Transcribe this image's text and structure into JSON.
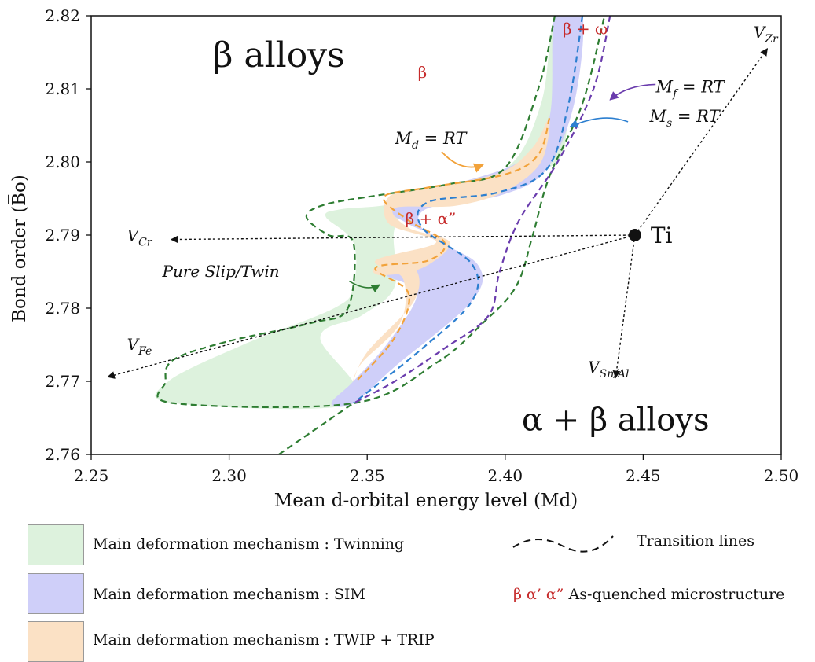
{
  "chart_data": {
    "type": "scatter",
    "xlabel": "Mean d-orbital energy level (Md)",
    "ylabel": "Bond order (B̅o)",
    "xlim": [
      2.25,
      2.5
    ],
    "ylim": [
      2.76,
      2.82
    ],
    "xticks": [
      "2.25",
      "2.30",
      "2.35",
      "2.40",
      "2.45",
      "2.50"
    ],
    "yticks": [
      "2.82",
      "2.81",
      "2.80",
      "2.79",
      "2.78",
      "2.77",
      "2.76"
    ],
    "regions": {
      "twinning": {
        "color": "#ddf2dd",
        "points": [
          [
            2.368,
            2.795
          ],
          [
            2.4,
            2.799
          ],
          [
            2.413,
            2.808
          ],
          [
            2.418,
            2.82
          ],
          [
            2.428,
            2.82
          ],
          [
            2.423,
            2.806
          ],
          [
            2.415,
            2.799
          ],
          [
            2.37,
            2.7945
          ],
          [
            2.36,
            2.791
          ],
          [
            2.36,
            2.783
          ],
          [
            2.348,
            2.779
          ],
          [
            2.333,
            2.776
          ],
          [
            2.345,
            2.767
          ],
          [
            2.28,
            2.767
          ],
          [
            2.278,
            2.77
          ],
          [
            2.305,
            2.775
          ],
          [
            2.338,
            2.78
          ],
          [
            2.345,
            2.783
          ],
          [
            2.345,
            2.789
          ],
          [
            2.335,
            2.7925
          ],
          [
            2.34,
            2.7935
          ],
          [
            2.355,
            2.794
          ]
        ]
      },
      "sim": {
        "color": "#cfcff9",
        "points": [
          [
            2.416,
            2.806
          ],
          [
            2.418,
            2.82
          ],
          [
            2.428,
            2.82
          ],
          [
            2.425,
            2.808
          ],
          [
            2.415,
            2.799
          ],
          [
            2.399,
            2.7955
          ],
          [
            2.371,
            2.7935
          ],
          [
            2.372,
            2.79
          ],
          [
            2.39,
            2.786
          ],
          [
            2.388,
            2.781
          ],
          [
            2.36,
            2.772
          ],
          [
            2.345,
            2.767
          ],
          [
            2.337,
            2.767
          ],
          [
            2.345,
            2.77
          ],
          [
            2.358,
            2.7755
          ],
          [
            2.368,
            2.782
          ],
          [
            2.357,
            2.7845
          ],
          [
            2.36,
            2.786
          ],
          [
            2.377,
            2.789
          ],
          [
            2.365,
            2.7915
          ],
          [
            2.356,
            2.794
          ],
          [
            2.372,
            2.796
          ],
          [
            2.405,
            2.8
          ]
        ]
      },
      "twip_trip": {
        "color": "#fbe1c5",
        "points": [
          [
            2.358,
            2.7953
          ],
          [
            2.372,
            2.7965
          ],
          [
            2.398,
            2.7985
          ],
          [
            2.41,
            2.802
          ],
          [
            2.416,
            2.806
          ],
          [
            2.413,
            2.8
          ],
          [
            2.4,
            2.796
          ],
          [
            2.382,
            2.794
          ],
          [
            2.36,
            2.7937
          ],
          [
            2.365,
            2.791
          ],
          [
            2.38,
            2.789
          ],
          [
            2.37,
            2.7855
          ],
          [
            2.355,
            2.7845
          ],
          [
            2.353,
            2.7855
          ],
          [
            2.367,
            2.7855
          ],
          [
            2.367,
            2.781
          ],
          [
            2.35,
            2.774
          ],
          [
            2.345,
            2.77
          ],
          [
            2.348,
            2.7725
          ],
          [
            2.362,
            2.778
          ],
          [
            2.363,
            2.784
          ],
          [
            2.353,
            2.7865
          ],
          [
            2.375,
            2.789
          ],
          [
            2.358,
            2.7915
          ]
        ]
      }
    },
    "boundaries": [
      {
        "name": "twinning-boundary",
        "color": "#2e7d32",
        "points": [
          [
            2.418,
            2.82
          ],
          [
            2.412,
            2.81
          ],
          [
            2.4,
            2.7992
          ],
          [
            2.38,
            2.797
          ],
          [
            2.355,
            2.7955
          ],
          [
            2.335,
            2.7942
          ],
          [
            2.328,
            2.7925
          ],
          [
            2.336,
            2.79
          ],
          [
            2.345,
            2.789
          ],
          [
            2.343,
            2.78
          ],
          [
            2.33,
            2.778
          ],
          [
            2.3,
            2.7755
          ],
          [
            2.28,
            2.773
          ],
          [
            2.277,
            2.77
          ],
          [
            2.28,
            2.767
          ],
          [
            2.345,
            2.767
          ],
          [
            2.375,
            2.7725
          ],
          [
            2.392,
            2.778
          ],
          [
            2.404,
            2.783
          ],
          [
            2.41,
            2.79
          ],
          [
            2.416,
            2.798
          ],
          [
            2.428,
            2.808
          ],
          [
            2.436,
            2.82
          ]
        ]
      },
      {
        "name": "twinning-lower-line",
        "color": "#2e7d32",
        "points": [
          [
            2.318,
            2.76
          ],
          [
            2.345,
            2.767
          ]
        ]
      },
      {
        "name": "md-rt-line",
        "color": "#f2a23a",
        "points": [
          [
            2.416,
            2.806
          ],
          [
            2.412,
            2.801
          ],
          [
            2.4,
            2.7983
          ],
          [
            2.372,
            2.7965
          ],
          [
            2.356,
            2.7952
          ],
          [
            2.365,
            2.792
          ],
          [
            2.378,
            2.789
          ],
          [
            2.372,
            2.7865
          ],
          [
            2.353,
            2.7855
          ],
          [
            2.365,
            2.782
          ],
          [
            2.36,
            2.776
          ],
          [
            2.346,
            2.77
          ]
        ]
      },
      {
        "name": "ms-rt-line",
        "color": "#2c7fd0",
        "points": [
          [
            2.428,
            2.82
          ],
          [
            2.423,
            2.808
          ],
          [
            2.415,
            2.799
          ],
          [
            2.397,
            2.7958
          ],
          [
            2.372,
            2.7945
          ],
          [
            2.37,
            2.791
          ],
          [
            2.388,
            2.786
          ],
          [
            2.388,
            2.781
          ],
          [
            2.37,
            2.7745
          ],
          [
            2.345,
            2.767
          ]
        ]
      },
      {
        "name": "mf-rt-line",
        "color": "#6a3cad",
        "points": [
          [
            2.438,
            2.82
          ],
          [
            2.432,
            2.81
          ],
          [
            2.419,
            2.8
          ],
          [
            2.405,
            2.792
          ],
          [
            2.398,
            2.785
          ],
          [
            2.394,
            2.779
          ],
          [
            2.378,
            2.7745
          ],
          [
            2.36,
            2.77
          ],
          [
            2.345,
            2.767
          ]
        ]
      }
    ],
    "ti_point": {
      "x": 2.447,
      "y": 2.79,
      "label": "Ti"
    },
    "vectors": [
      {
        "label": "V",
        "sub": "Zr",
        "to": [
          2.495,
          2.8155
        ],
        "label_at": [
          2.49,
          2.817
        ]
      },
      {
        "label": "V",
        "sub": "Cr",
        "to": [
          2.279,
          2.7894
        ],
        "label_at": [
          2.263,
          2.7892
        ]
      },
      {
        "label": "V",
        "sub": "Fe",
        "to": [
          2.256,
          2.7706
        ],
        "label_at": [
          2.263,
          2.7743
        ]
      },
      {
        "label": "V",
        "sub": "Sn/Al",
        "to": [
          2.44,
          2.7705
        ],
        "label_at": [
          2.43,
          2.7712
        ]
      }
    ],
    "annotations": [
      {
        "text": "β alloys",
        "at": [
          2.318,
          2.813
        ],
        "size": 44,
        "color": "#111"
      },
      {
        "text": "α + β alloys",
        "at": [
          2.44,
          2.7633
        ],
        "size": 40,
        "color": "#111"
      },
      {
        "text": "β",
        "at": [
          2.37,
          2.8115
        ],
        "size": 20,
        "color": "#c62a2a"
      },
      {
        "text": "β + ω",
        "at": [
          2.429,
          2.8175
        ],
        "size": 20,
        "color": "#c62a2a"
      },
      {
        "text": "β + α”",
        "at": [
          2.373,
          2.7915
        ],
        "size": 20,
        "color": "#c62a2a"
      }
    ],
    "line_labels": [
      {
        "base": "M",
        "sub": "d",
        "rest": " = RT",
        "at": [
          2.373,
          2.8025
        ]
      },
      {
        "base": "M",
        "sub": "s",
        "rest": " = RT",
        "at": [
          2.465,
          2.8055
        ]
      },
      {
        "base": "M",
        "sub": "f",
        "rest": " = RT",
        "at": [
          2.467,
          2.8095
        ]
      }
    ],
    "slip_label": {
      "text": "Pure Slip/Twin",
      "at": [
        2.297,
        2.7843
      ]
    }
  },
  "legend": {
    "twinning": "Main deformation mechanism : Twinning",
    "sim": "Main deformation mechanism : SIM",
    "twip_trip": "Main deformation mechanism : TWIP + TRIP",
    "transition": "Transition lines",
    "phases": "β α’ α”",
    "as_quenched": "As-quenched microstructure"
  }
}
